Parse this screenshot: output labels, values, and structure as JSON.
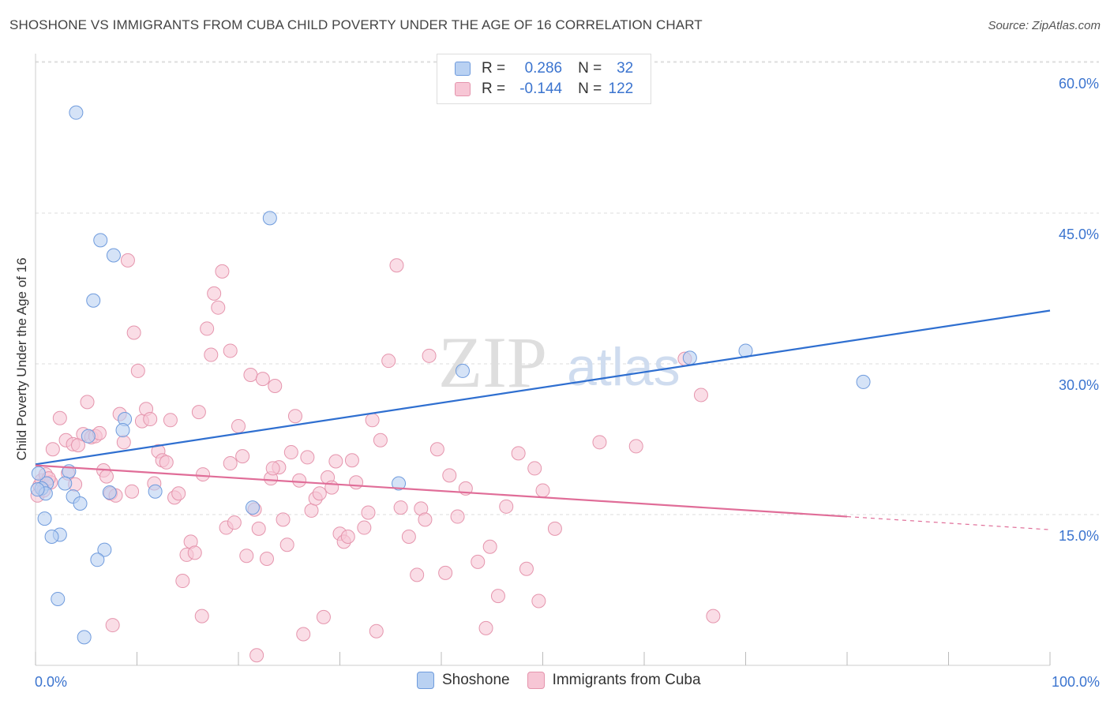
{
  "title": "SHOSHONE VS IMMIGRANTS FROM CUBA CHILD POVERTY UNDER THE AGE OF 16 CORRELATION CHART",
  "source": "Source: ZipAtlas.com",
  "watermark": {
    "zip": "ZIP",
    "atlas": "atlas"
  },
  "legend": {
    "r_label": "R =",
    "n_label": "N =",
    "rows": [
      {
        "r": "0.286",
        "n": "32"
      },
      {
        "r": "-0.144",
        "n": "122"
      }
    ]
  },
  "colors": {
    "shoshone_fill": "#b9d1f2",
    "shoshone_stroke": "#6f9bdd",
    "shoshone_line": "#2f6fd0",
    "cuba_fill": "#f7c6d5",
    "cuba_stroke": "#e595ad",
    "cuba_line": "#e06d98",
    "axis_text": "#3b74cf",
    "grid": "#dddddd"
  },
  "chart_data": {
    "type": "scatter",
    "title": "SHOSHONE VS IMMIGRANTS FROM CUBA CHILD POVERTY UNDER THE AGE OF 16 CORRELATION CHART",
    "xlabel": "",
    "ylabel": "Child Poverty Under the Age of 16",
    "xlim": [
      0,
      100
    ],
    "ylim": [
      0,
      62
    ],
    "x_tick_labels": [
      "0.0%",
      "100.0%"
    ],
    "y_ticks": [
      15,
      30,
      45,
      60
    ],
    "y_tick_labels": [
      "15.0%",
      "30.0%",
      "45.0%",
      "60.0%"
    ],
    "grid": true,
    "series": [
      {
        "name": "Shoshone",
        "r": 0.286,
        "n": 32,
        "trend": {
          "x0": 0,
          "y0": 20.0,
          "x1": 100,
          "y1": 35.3
        },
        "points": [
          [
            4.0,
            55.0
          ],
          [
            23.1,
            44.5
          ],
          [
            6.4,
            42.3
          ],
          [
            7.7,
            40.8
          ],
          [
            5.7,
            36.3
          ],
          [
            42.1,
            29.3
          ],
          [
            64.5,
            30.6
          ],
          [
            70.0,
            31.3
          ],
          [
            81.6,
            28.2
          ],
          [
            8.8,
            24.5
          ],
          [
            8.6,
            23.4
          ],
          [
            5.2,
            22.8
          ],
          [
            3.3,
            19.3
          ],
          [
            1.1,
            18.1
          ],
          [
            2.9,
            18.1
          ],
          [
            0.3,
            19.1
          ],
          [
            0.6,
            17.6
          ],
          [
            1.0,
            17.1
          ],
          [
            7.3,
            17.2
          ],
          [
            11.8,
            17.3
          ],
          [
            3.7,
            16.8
          ],
          [
            4.4,
            16.1
          ],
          [
            21.4,
            15.7
          ],
          [
            35.8,
            18.1
          ],
          [
            0.9,
            14.6
          ],
          [
            2.4,
            13.0
          ],
          [
            1.6,
            12.8
          ],
          [
            6.8,
            11.5
          ],
          [
            6.1,
            10.5
          ],
          [
            2.2,
            6.6
          ],
          [
            4.8,
            2.8
          ],
          [
            0.2,
            17.5
          ]
        ]
      },
      {
        "name": "Immigrants from Cuba",
        "r": -0.144,
        "n": 122,
        "trend": {
          "x0": 0,
          "y0": 19.9,
          "x1": 80,
          "y1": 14.8,
          "dashed_to_x": 100,
          "dashed_to_y": 13.5
        },
        "points": [
          [
            0.2,
            16.9
          ],
          [
            0.4,
            17.9
          ],
          [
            0.6,
            18.4
          ],
          [
            1.0,
            19.0
          ],
          [
            1.5,
            18.2
          ],
          [
            1.7,
            21.5
          ],
          [
            2.4,
            24.6
          ],
          [
            3.0,
            22.4
          ],
          [
            3.2,
            19.1
          ],
          [
            3.7,
            22.0
          ],
          [
            0.8,
            17.4
          ],
          [
            1.3,
            18.6
          ],
          [
            3.9,
            18.0
          ],
          [
            4.2,
            21.9
          ],
          [
            4.7,
            23.0
          ],
          [
            5.1,
            26.2
          ],
          [
            5.5,
            22.7
          ],
          [
            5.9,
            22.8
          ],
          [
            6.3,
            23.1
          ],
          [
            6.7,
            19.4
          ],
          [
            7.0,
            18.8
          ],
          [
            7.4,
            17.1
          ],
          [
            7.9,
            16.9
          ],
          [
            8.3,
            25.0
          ],
          [
            8.7,
            22.2
          ],
          [
            9.5,
            17.3
          ],
          [
            9.1,
            40.3
          ],
          [
            9.7,
            33.1
          ],
          [
            10.1,
            29.3
          ],
          [
            10.5,
            24.3
          ],
          [
            10.9,
            25.5
          ],
          [
            11.3,
            24.5
          ],
          [
            11.7,
            18.1
          ],
          [
            12.1,
            21.3
          ],
          [
            12.5,
            20.4
          ],
          [
            12.9,
            20.2
          ],
          [
            13.3,
            24.4
          ],
          [
            13.7,
            16.7
          ],
          [
            14.1,
            17.1
          ],
          [
            14.5,
            8.4
          ],
          [
            14.9,
            11.0
          ],
          [
            15.3,
            12.3
          ],
          [
            15.7,
            11.2
          ],
          [
            16.1,
            25.2
          ],
          [
            16.5,
            19.0
          ],
          [
            16.9,
            33.5
          ],
          [
            17.3,
            30.9
          ],
          [
            17.6,
            37.0
          ],
          [
            18.0,
            35.6
          ],
          [
            18.4,
            39.2
          ],
          [
            18.8,
            13.7
          ],
          [
            19.2,
            20.1
          ],
          [
            19.6,
            14.2
          ],
          [
            20.0,
            23.8
          ],
          [
            20.4,
            20.8
          ],
          [
            20.8,
            10.9
          ],
          [
            21.2,
            28.9
          ],
          [
            21.6,
            15.5
          ],
          [
            22.0,
            13.6
          ],
          [
            22.4,
            28.5
          ],
          [
            22.8,
            10.6
          ],
          [
            23.2,
            18.6
          ],
          [
            23.6,
            27.8
          ],
          [
            24.0,
            19.7
          ],
          [
            24.4,
            14.5
          ],
          [
            24.8,
            12.0
          ],
          [
            25.2,
            21.2
          ],
          [
            25.6,
            24.8
          ],
          [
            26.0,
            18.4
          ],
          [
            26.4,
            3.1
          ],
          [
            26.8,
            20.7
          ],
          [
            27.2,
            15.4
          ],
          [
            27.6,
            16.6
          ],
          [
            28.0,
            17.1
          ],
          [
            28.4,
            4.8
          ],
          [
            28.8,
            18.7
          ],
          [
            29.2,
            17.7
          ],
          [
            29.6,
            20.3
          ],
          [
            30.0,
            13.1
          ],
          [
            30.4,
            12.3
          ],
          [
            30.8,
            12.8
          ],
          [
            31.2,
            20.4
          ],
          [
            31.6,
            18.2
          ],
          [
            32.4,
            13.7
          ],
          [
            32.8,
            15.2
          ],
          [
            33.2,
            24.4
          ],
          [
            33.6,
            3.4
          ],
          [
            34.0,
            22.4
          ],
          [
            34.8,
            30.3
          ],
          [
            35.6,
            39.8
          ],
          [
            36.0,
            15.7
          ],
          [
            36.8,
            12.8
          ],
          [
            37.6,
            9.0
          ],
          [
            38.0,
            15.6
          ],
          [
            38.4,
            14.5
          ],
          [
            38.8,
            30.8
          ],
          [
            39.6,
            21.5
          ],
          [
            40.4,
            9.2
          ],
          [
            40.8,
            18.9
          ],
          [
            41.6,
            14.8
          ],
          [
            42.4,
            17.6
          ],
          [
            43.6,
            10.3
          ],
          [
            44.4,
            3.7
          ],
          [
            44.8,
            11.8
          ],
          [
            45.6,
            6.9
          ],
          [
            46.4,
            15.8
          ],
          [
            47.6,
            21.1
          ],
          [
            48.4,
            9.6
          ],
          [
            49.2,
            19.6
          ],
          [
            49.6,
            6.4
          ],
          [
            50.0,
            17.4
          ],
          [
            51.2,
            13.6
          ],
          [
            55.6,
            22.2
          ],
          [
            59.2,
            21.8
          ],
          [
            64.0,
            30.5
          ],
          [
            65.6,
            26.9
          ],
          [
            66.8,
            4.9
          ],
          [
            16.4,
            4.9
          ],
          [
            7.6,
            4.0
          ],
          [
            21.8,
            1.0
          ],
          [
            19.2,
            31.3
          ],
          [
            23.4,
            19.6
          ]
        ]
      }
    ]
  }
}
